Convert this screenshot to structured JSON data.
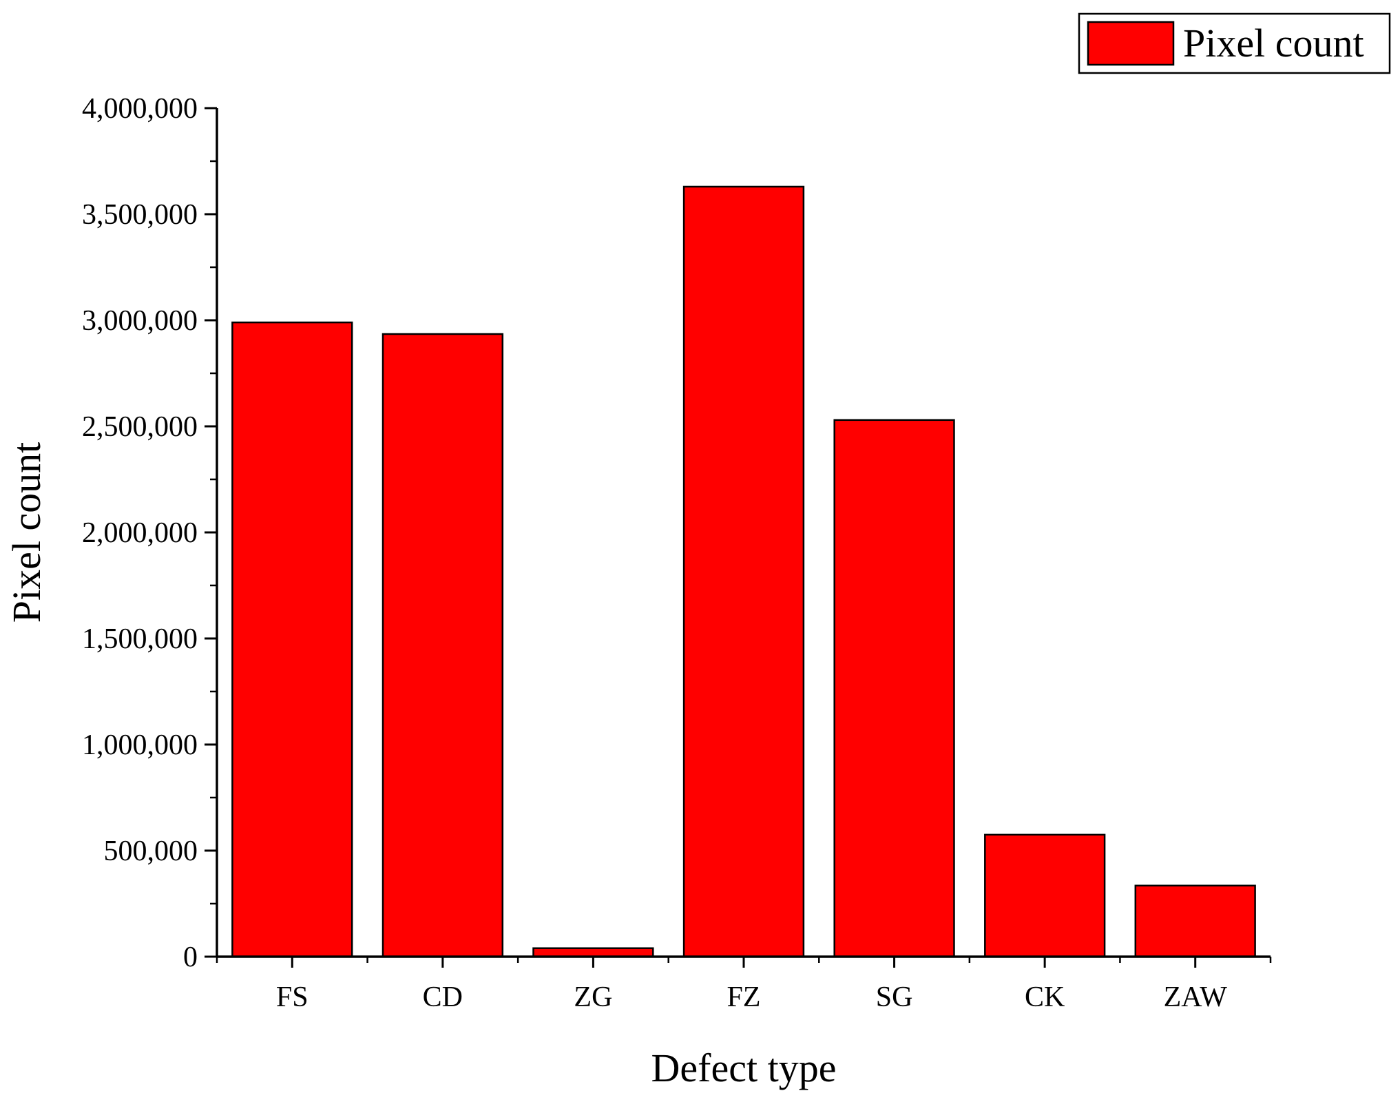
{
  "chart_data": {
    "type": "bar",
    "title": "",
    "xlabel": "Defect type",
    "ylabel": "Pixel count",
    "categories": [
      "FS",
      "CD",
      "ZG",
      "FZ",
      "SG",
      "CK",
      "ZAW"
    ],
    "series": [
      {
        "name": "Pixel count",
        "values": [
          2990000,
          2935000,
          40000,
          3630000,
          2530000,
          575000,
          335000
        ],
        "color": "#ff0000"
      }
    ],
    "ylim": [
      0,
      4000000
    ],
    "yticks": [
      0,
      500000,
      1000000,
      1500000,
      2000000,
      2500000,
      3000000,
      3500000,
      4000000
    ],
    "ytick_labels": [
      "0",
      "500,000",
      "1,000,000",
      "1,500,000",
      "2,000,000",
      "2,500,000",
      "3,000,000",
      "3,500,000",
      "4,000,000"
    ],
    "grid": false,
    "legend_position": "top-right",
    "bar_color": "#ff0000",
    "bar_edge_color": "#000000"
  }
}
